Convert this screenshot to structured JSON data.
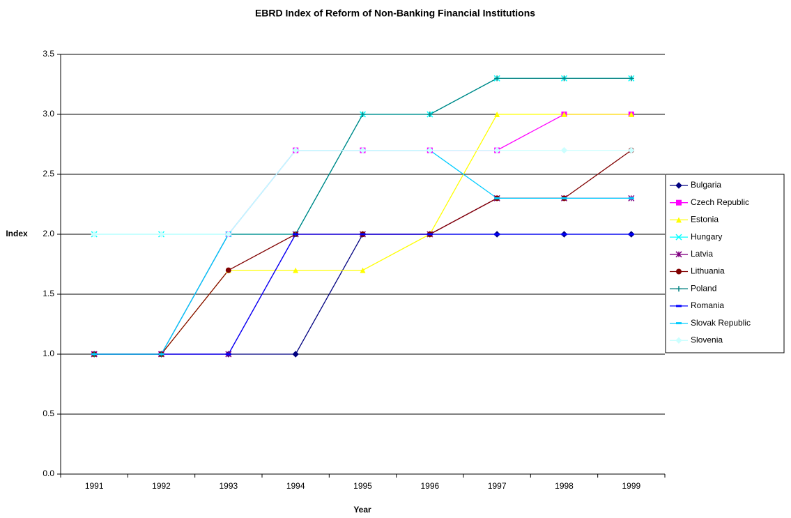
{
  "chart_data": {
    "type": "line",
    "title": "EBRD Index of Reform of Non-Banking Financial Institutions",
    "x_label": "Year",
    "y_label": "Index",
    "categories": [
      "1991",
      "1992",
      "1993",
      "1994",
      "1995",
      "1996",
      "1997",
      "1998",
      "1999"
    ],
    "ylim": [
      0,
      3.5
    ],
    "yticks": [
      {
        "value": 0,
        "label": "0.0"
      },
      0.5,
      {
        "value": 1,
        "label": "1.0"
      },
      1.5,
      {
        "value": 2,
        "label": "2.0"
      },
      2.5,
      {
        "value": 3,
        "label": "3.0"
      },
      3.5
    ],
    "grid": true,
    "legend": "right",
    "series": [
      {
        "name": "Bulgaria",
        "color": "#000080",
        "marker": "diamond",
        "values": [
          1,
          1,
          1,
          1,
          2,
          2,
          2,
          2,
          2
        ]
      },
      {
        "name": "Czech Republic",
        "color": "#FF00FF",
        "marker": "square",
        "values": [
          1,
          1,
          2,
          2.7,
          2.7,
          2.7,
          2.7,
          3,
          3
        ]
      },
      {
        "name": "Estonia",
        "color": "#FFFF00",
        "marker": "triangle",
        "values": [
          1,
          1,
          1.7,
          1.7,
          1.7,
          2,
          3,
          3,
          3
        ]
      },
      {
        "name": "Hungary",
        "color": "#00FFFF",
        "marker": "x",
        "values": [
          2,
          2,
          2,
          2,
          3,
          3,
          3.3,
          3.3,
          3.3
        ]
      },
      {
        "name": "Latvia",
        "color": "#800080",
        "marker": "star",
        "values": [
          1,
          1,
          1,
          2,
          2,
          2,
          2.3,
          2.3,
          2.3
        ]
      },
      {
        "name": "Lithuania",
        "color": "#800000",
        "marker": "circle",
        "values": [
          1,
          1,
          1.7,
          2,
          2,
          2,
          2.3,
          2.3,
          2.7
        ]
      },
      {
        "name": "Poland",
        "color": "#008080",
        "marker": "plus",
        "values": [
          1,
          1,
          2,
          2,
          3,
          3,
          3.3,
          3.3,
          3.3
        ]
      },
      {
        "name": "Romania",
        "color": "#0000FF",
        "marker": "dash",
        "values": [
          1,
          1,
          1,
          2,
          2,
          2,
          2,
          2,
          2
        ]
      },
      {
        "name": "Slovak Republic",
        "color": "#00CCFF",
        "marker": "dash",
        "values": [
          1,
          1,
          2,
          2.7,
          2.7,
          2.7,
          2.3,
          2.3,
          2.3
        ]
      },
      {
        "name": "Slovenia",
        "color": "#CCFFFF",
        "marker": "diamond",
        "values": [
          2,
          2,
          2,
          2.7,
          2.7,
          2.7,
          2.7,
          2.7,
          2.7
        ]
      }
    ]
  }
}
